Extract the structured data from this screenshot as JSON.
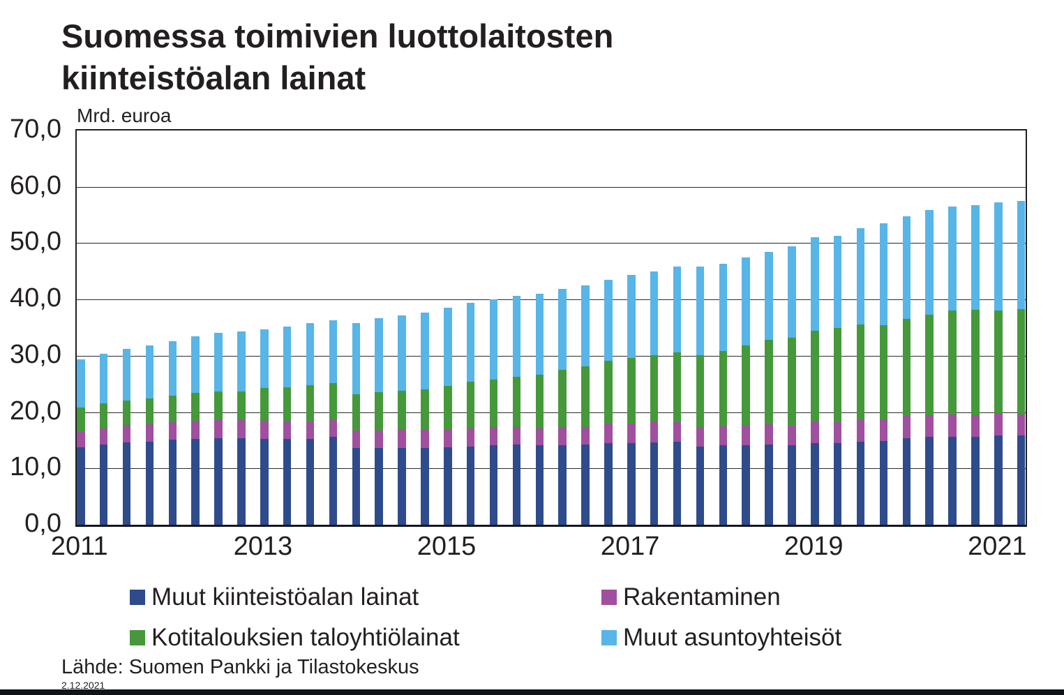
{
  "title": {
    "line1": "Suomessa toimivien luottolaitosten",
    "line2": "kiinteistöalan lainat"
  },
  "y_axis": {
    "unit_label": "Mrd. euroa",
    "tick_labels": [
      "70,0",
      "60,0",
      "50,0",
      "40,0",
      "30,0",
      "20,0",
      "10,0",
      "0,0"
    ],
    "min": 0,
    "max": 70,
    "step": 10
  },
  "x_axis": {
    "year_labels": [
      {
        "text": "2011",
        "bar_index": 0
      },
      {
        "text": "2013",
        "bar_index": 8
      },
      {
        "text": "2015",
        "bar_index": 16
      },
      {
        "text": "2017",
        "bar_index": 24
      },
      {
        "text": "2019",
        "bar_index": 32
      },
      {
        "text": "2021",
        "bar_index": 40
      }
    ]
  },
  "legend": [
    {
      "label": "Muut kiinteistöalan lainat",
      "color": "#2e4c8b"
    },
    {
      "label": "Rakentaminen",
      "color": "#a0509e"
    },
    {
      "label": "Kotitalouksien taloyhtiölainat",
      "color": "#45993a"
    },
    {
      "label": "Muut asuntoyhteisöt",
      "color": "#57b5e8"
    }
  ],
  "source": "Lähde: Suomen Pankki ja Tilastokeskus",
  "date": "2.12.2021",
  "colors": {
    "muut_kiinteistoalan_lainat": "#2e4c8b",
    "rakentaminen": "#a0509e",
    "kotitalouksien_taloyhtiolainat": "#45993a",
    "muut_asuntoyhteisot": "#57b5e8",
    "text": "#231f20",
    "gridline": "#2a2a2a"
  },
  "chart_data": {
    "type": "bar",
    "stacked": true,
    "title": "Suomessa toimivien luottolaitosten kiinteistöalan lainat",
    "ylabel": "Mrd. euroa",
    "ylim": [
      0,
      70
    ],
    "grid": true,
    "legend_position": "bottom",
    "categories": [
      "2011Q1",
      "2011Q2",
      "2011Q3",
      "2011Q4",
      "2012Q1",
      "2012Q2",
      "2012Q3",
      "2012Q4",
      "2013Q1",
      "2013Q2",
      "2013Q3",
      "2013Q4",
      "2014Q1",
      "2014Q2",
      "2014Q3",
      "2014Q4",
      "2015Q1",
      "2015Q2",
      "2015Q3",
      "2015Q4",
      "2016Q1",
      "2016Q2",
      "2016Q3",
      "2016Q4",
      "2017Q1",
      "2017Q2",
      "2017Q3",
      "2017Q4",
      "2018Q1",
      "2018Q2",
      "2018Q3",
      "2018Q4",
      "2019Q1",
      "2019Q2",
      "2019Q3",
      "2019Q4",
      "2020Q1",
      "2020Q2",
      "2020Q3",
      "2020Q4",
      "2021Q1",
      "2021Q2"
    ],
    "series": [
      {
        "name": "Muut kiinteistöalan lainat",
        "color": "#2e4c8b",
        "values": [
          13.7,
          14.2,
          14.6,
          14.8,
          15.1,
          15.3,
          15.4,
          15.4,
          15.3,
          15.2,
          15.2,
          15.6,
          13.6,
          13.6,
          13.6,
          13.6,
          13.7,
          13.9,
          14.1,
          14.3,
          14.1,
          14.1,
          14.2,
          14.5,
          14.5,
          14.6,
          14.7,
          13.9,
          14.1,
          14.1,
          14.2,
          14.1,
          14.5,
          14.5,
          14.7,
          14.9,
          15.4,
          15.6,
          15.6,
          15.6,
          15.9,
          15.8
        ]
      },
      {
        "name": "Rakentaminen",
        "color": "#a0509e",
        "values": [
          2.9,
          2.9,
          3.1,
          3.1,
          3.1,
          3.2,
          3.3,
          3.2,
          3.2,
          3.2,
          3.1,
          3.0,
          3.1,
          3.1,
          3.2,
          3.2,
          3.2,
          3.2,
          3.2,
          3.1,
          3.0,
          3.3,
          3.2,
          3.5,
          3.5,
          3.7,
          3.5,
          3.5,
          3.4,
          3.5,
          3.6,
          3.5,
          3.8,
          3.7,
          3.9,
          3.8,
          3.9,
          3.9,
          4.0,
          3.9,
          3.9,
          3.8
        ]
      },
      {
        "name": "Kotitalouksien taloyhtiölainat",
        "color": "#45993a",
        "values": [
          4.2,
          4.4,
          4.4,
          4.5,
          4.7,
          4.9,
          5.0,
          5.1,
          5.8,
          6.0,
          6.5,
          6.6,
          6.5,
          6.9,
          7.0,
          7.3,
          7.8,
          8.3,
          8.5,
          8.9,
          9.6,
          10.1,
          10.7,
          11.1,
          11.6,
          11.8,
          12.4,
          12.7,
          13.4,
          14.2,
          15.0,
          15.6,
          16.1,
          16.7,
          16.9,
          16.8,
          17.3,
          17.8,
          18.4,
          18.7,
          18.2,
          18.7
        ]
      },
      {
        "name": "Muut asuntoyhteisöt",
        "color": "#57b5e8",
        "values": [
          8.6,
          8.8,
          9.1,
          9.4,
          9.7,
          10.0,
          10.4,
          10.6,
          10.4,
          10.8,
          11.0,
          11.1,
          12.6,
          13.1,
          13.4,
          13.6,
          13.8,
          14.0,
          14.2,
          14.3,
          14.3,
          14.4,
          14.4,
          14.4,
          14.7,
          14.9,
          15.3,
          15.7,
          15.5,
          15.6,
          15.7,
          16.2,
          16.6,
          16.4,
          17.2,
          18.0,
          18.2,
          18.6,
          18.5,
          18.5,
          19.3,
          19.2
        ]
      }
    ]
  }
}
